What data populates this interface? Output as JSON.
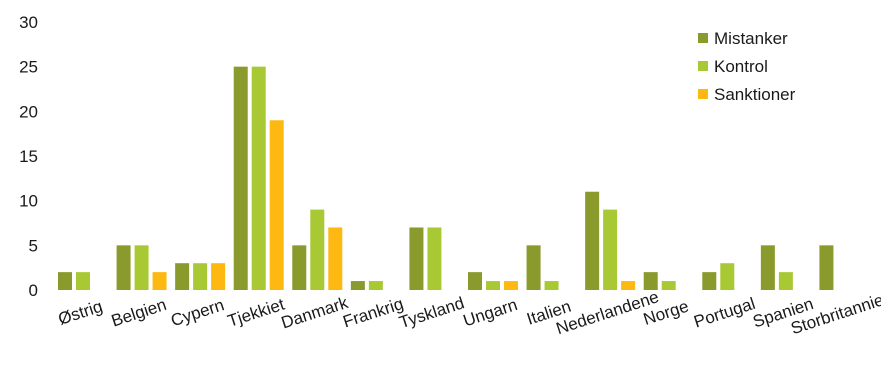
{
  "chart_data": {
    "type": "bar",
    "title": "",
    "xlabel": "",
    "ylabel": "",
    "ylim": [
      0,
      30
    ],
    "yticks": [
      0,
      5,
      10,
      15,
      20,
      25,
      30
    ],
    "grid": false,
    "legend_position": "top-right",
    "categories": [
      "Østrig",
      "Belgien",
      "Cypern",
      "Tjekkiet",
      "Danmark",
      "Frankrig",
      "Tyskland",
      "Ungarn",
      "Italien",
      "Nederlandene",
      "Norge",
      "Portugal",
      "Spanien",
      "Storbritannien"
    ],
    "series": [
      {
        "name": "Mistanker",
        "color": "#8a9a2c",
        "values": [
          2,
          5,
          3,
          25,
          5,
          1,
          7,
          2,
          5,
          11,
          2,
          2,
          5,
          5
        ]
      },
      {
        "name": "Kontrol",
        "color": "#a9c934",
        "values": [
          2,
          5,
          3,
          25,
          9,
          1,
          7,
          1,
          1,
          9,
          1,
          3,
          2,
          0
        ]
      },
      {
        "name": "Sanktioner",
        "color": "#fdb812",
        "values": [
          0,
          2,
          3,
          19,
          7,
          0,
          0,
          1,
          0,
          1,
          0,
          0,
          0,
          0
        ]
      }
    ]
  }
}
